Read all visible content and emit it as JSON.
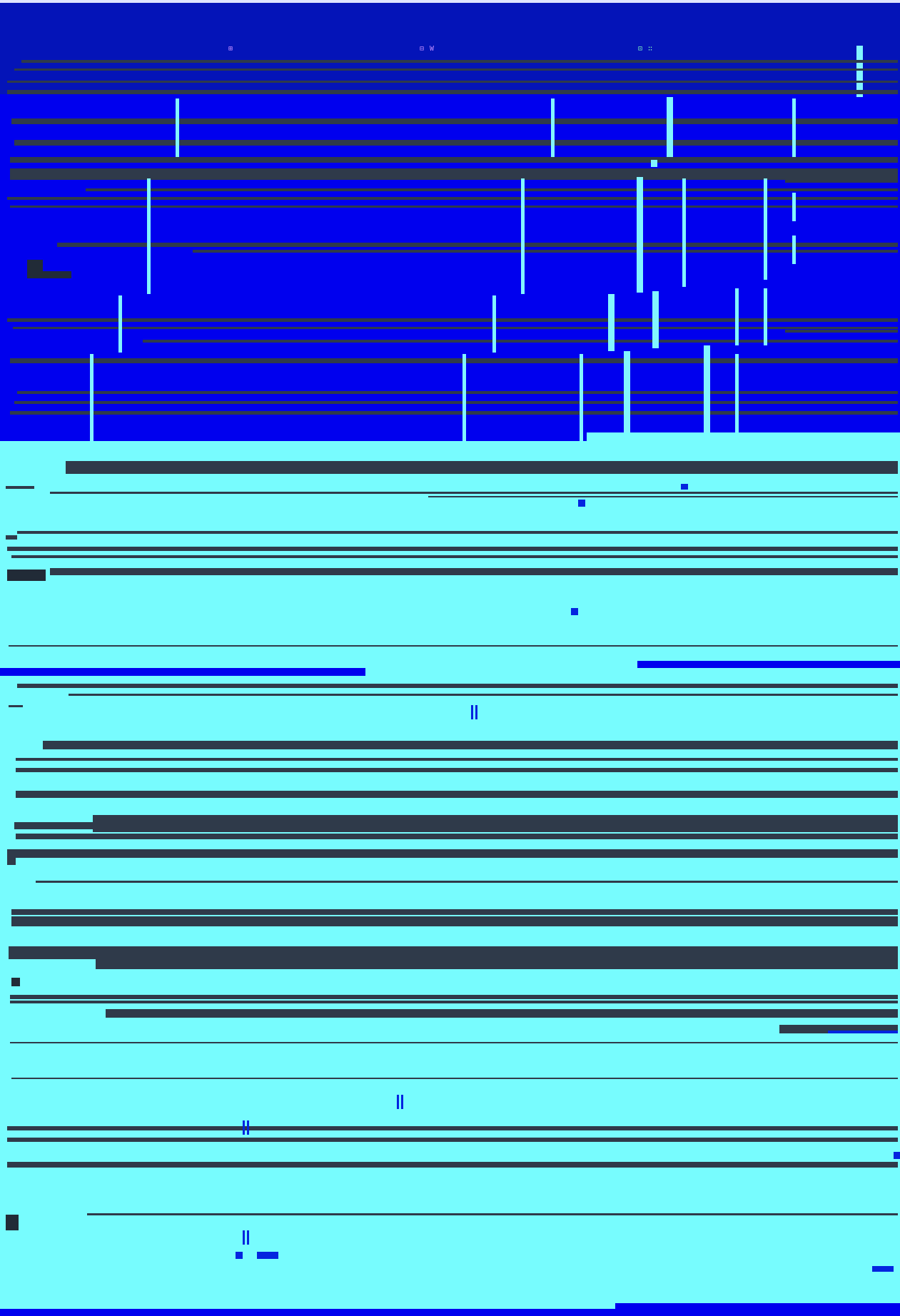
{
  "window": {
    "title": "",
    "status": ""
  },
  "header": {
    "glyphs": [
      "⊞",
      "⊟ W",
      "⊡ ∷"
    ]
  },
  "content": {
    "label_a": "",
    "label_b": "",
    "label_c": ""
  }
}
